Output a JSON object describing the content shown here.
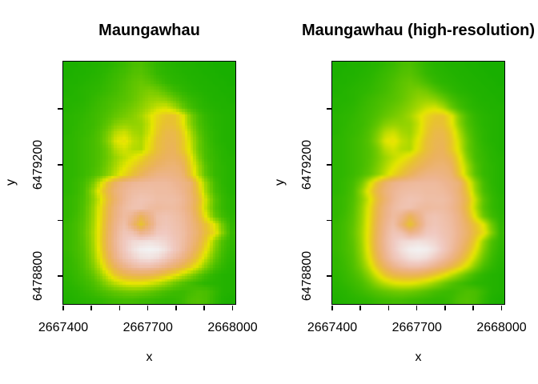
{
  "figure": {
    "background": "#FFFFFF",
    "text_color": "#000000",
    "border_color": "#000000"
  },
  "chart_data": [
    {
      "type": "heatmap",
      "title": "Maungawhau",
      "xlabel": "x",
      "ylabel": "y",
      "xlim": [
        2667400,
        2668010
      ],
      "ylim": [
        6478700,
        6479570
      ],
      "zlim": [
        94,
        195
      ],
      "grid": false,
      "x_ticks": [
        {
          "v": 2667400,
          "label": "2667400"
        },
        {
          "v": 2667500
        },
        {
          "v": 2667600
        },
        {
          "v": 2667700,
          "label": "2667700"
        },
        {
          "v": 2667800
        },
        {
          "v": 2667900
        },
        {
          "v": 2668000,
          "label": "2668000"
        }
      ],
      "y_ticks": [
        {
          "v": 6478800,
          "label": "6478800"
        },
        {
          "v": 6479000
        },
        {
          "v": 6479200,
          "label": "6479200"
        },
        {
          "v": 6479400
        }
      ],
      "palette_name": "terrain.colors",
      "palette": [
        "#00A600",
        "#2DB600",
        "#63C600",
        "#A0D600",
        "#E6E600",
        "#E8C32E",
        "#EBB25E",
        "#EDB48E",
        "#F0C9C0",
        "#F2F2F2"
      ],
      "interpolated": false,
      "elevation_grid": {
        "rows": 29,
        "cols": 21,
        "values": [
          [
            101,
            101,
            102,
            102,
            103,
            104,
            106,
            108,
            111,
            112,
            109,
            106,
            104,
            103,
            102,
            102,
            101,
            101,
            100,
            100,
            100
          ],
          [
            101,
            102,
            102,
            103,
            104,
            106,
            108,
            110,
            113,
            114,
            111,
            107,
            105,
            104,
            103,
            102,
            102,
            101,
            101,
            100,
            100
          ],
          [
            102,
            102,
            103,
            104,
            105,
            107,
            109,
            112,
            115,
            117,
            115,
            111,
            107,
            105,
            104,
            103,
            102,
            102,
            101,
            101,
            100
          ],
          [
            102,
            103,
            104,
            105,
            106,
            108,
            110,
            113,
            116,
            119,
            121,
            119,
            114,
            109,
            106,
            104,
            103,
            102,
            102,
            101,
            101
          ],
          [
            103,
            103,
            104,
            106,
            108,
            110,
            112,
            114,
            117,
            121,
            125,
            126,
            124,
            118,
            111,
            107,
            105,
            103,
            102,
            102,
            101
          ],
          [
            103,
            104,
            105,
            107,
            109,
            111,
            114,
            117,
            120,
            124,
            129,
            134,
            136,
            130,
            118,
            110,
            106,
            104,
            103,
            102,
            102
          ],
          [
            104,
            105,
            106,
            108,
            110,
            113,
            117,
            120,
            123,
            128,
            136,
            144,
            149,
            150,
            140,
            122,
            111,
            106,
            104,
            103,
            102
          ],
          [
            104,
            105,
            107,
            108,
            111,
            116,
            123,
            126,
            125,
            126,
            134,
            146,
            152,
            152,
            142,
            124,
            112,
            107,
            104,
            103,
            102
          ],
          [
            104,
            106,
            107,
            109,
            113,
            121,
            132,
            135,
            129,
            127,
            136,
            148,
            156,
            157,
            147,
            130,
            115,
            108,
            105,
            103,
            102
          ],
          [
            105,
            106,
            108,
            110,
            114,
            124,
            138,
            141,
            133,
            130,
            140,
            152,
            158,
            159,
            150,
            134,
            118,
            109,
            105,
            103,
            102
          ],
          [
            105,
            106,
            108,
            110,
            113,
            120,
            132,
            136,
            131,
            130,
            142,
            153,
            159,
            161,
            150,
            136,
            118,
            110,
            106,
            104,
            102
          ],
          [
            105,
            106,
            108,
            110,
            113,
            119,
            127,
            133,
            138,
            144,
            152,
            158,
            162,
            163,
            158,
            142,
            122,
            110,
            107,
            104,
            103
          ],
          [
            105,
            106,
            108,
            110,
            114,
            121,
            130,
            138,
            145,
            152,
            158,
            163,
            166,
            167,
            163,
            146,
            128,
            113,
            107,
            105,
            103
          ],
          [
            105,
            106,
            108,
            111,
            116,
            124,
            134,
            144,
            152,
            160,
            166,
            170,
            171,
            170,
            167,
            150,
            130,
            114,
            107,
            105,
            103
          ],
          [
            105,
            107,
            110,
            118,
            134,
            152,
            164,
            171,
            174,
            175,
            176,
            176,
            176,
            174,
            171,
            167,
            145,
            124,
            110,
            105,
            103
          ],
          [
            105,
            107,
            111,
            124,
            142,
            158,
            168,
            174,
            177,
            178,
            178,
            177,
            177,
            176,
            173,
            166,
            150,
            126,
            111,
            106,
            103
          ],
          [
            106,
            108,
            112,
            122,
            136,
            154,
            166,
            175,
            179,
            181,
            180,
            178,
            178,
            178,
            175,
            168,
            155,
            133,
            115,
            107,
            104
          ],
          [
            106,
            108,
            113,
            124,
            140,
            158,
            170,
            177,
            180,
            180,
            177,
            176,
            177,
            177,
            174,
            167,
            153,
            131,
            114,
            107,
            104
          ],
          [
            106,
            109,
            114,
            125,
            141,
            159,
            171,
            177,
            172,
            160,
            170,
            179,
            181,
            179,
            176,
            170,
            157,
            137,
            118,
            109,
            105
          ],
          [
            107,
            110,
            115,
            126,
            142,
            161,
            173,
            179,
            166,
            150,
            166,
            179,
            182,
            180,
            177,
            171,
            162,
            150,
            138,
            118,
            106
          ],
          [
            107,
            110,
            116,
            127,
            143,
            162,
            175,
            182,
            180,
            172,
            176,
            183,
            184,
            181,
            178,
            172,
            164,
            152,
            142,
            122,
            107
          ],
          [
            107,
            110,
            115,
            126,
            144,
            163,
            176,
            184,
            188,
            189,
            190,
            189,
            187,
            183,
            178,
            171,
            161,
            146,
            126,
            112,
            106
          ],
          [
            107,
            110,
            114,
            125,
            142,
            162,
            175,
            184,
            190,
            194,
            195,
            194,
            190,
            184,
            177,
            168,
            156,
            140,
            122,
            110,
            105
          ],
          [
            106,
            109,
            113,
            123,
            139,
            158,
            172,
            181,
            186,
            190,
            191,
            189,
            184,
            178,
            171,
            161,
            148,
            132,
            117,
            108,
            104
          ],
          [
            106,
            108,
            112,
            120,
            133,
            150,
            163,
            172,
            177,
            180,
            180,
            177,
            172,
            166,
            158,
            148,
            136,
            122,
            111,
            106,
            103
          ],
          [
            105,
            107,
            110,
            115,
            125,
            138,
            150,
            157,
            160,
            161,
            160,
            156,
            150,
            143,
            134,
            125,
            116,
            109,
            105,
            103,
            102
          ],
          [
            104,
            106,
            108,
            111,
            117,
            126,
            133,
            138,
            140,
            140,
            137,
            133,
            127,
            120,
            114,
            110,
            107,
            105,
            104,
            103,
            102
          ],
          [
            103,
            104,
            106,
            108,
            111,
            114,
            117,
            119,
            120,
            119,
            117,
            114,
            111,
            109,
            108,
            110,
            112,
            111,
            107,
            103,
            102
          ],
          [
            102,
            103,
            104,
            105,
            106,
            108,
            109,
            110,
            110,
            109,
            108,
            107,
            106,
            106,
            108,
            112,
            113,
            111,
            106,
            102,
            101
          ]
        ]
      }
    },
    {
      "type": "heatmap",
      "title": "Maungawhau (high-resolution)",
      "xlabel": "x",
      "ylabel": "y",
      "xlim": [
        2667400,
        2668010
      ],
      "ylim": [
        6478700,
        6479570
      ],
      "zlim": [
        94,
        195
      ],
      "grid": false,
      "x_ticks": [
        {
          "v": 2667400,
          "label": "2667400"
        },
        {
          "v": 2667500
        },
        {
          "v": 2667600
        },
        {
          "v": 2667700,
          "label": "2667700"
        },
        {
          "v": 2667800
        },
        {
          "v": 2667900
        },
        {
          "v": 2668000,
          "label": "2668000"
        }
      ],
      "y_ticks": [
        {
          "v": 6478800,
          "label": "6478800"
        },
        {
          "v": 6479000
        },
        {
          "v": 6479200,
          "label": "6479200"
        },
        {
          "v": 6479400
        }
      ],
      "palette_name": "terrain.colors",
      "palette": [
        "#00A600",
        "#2DB600",
        "#63C600",
        "#A0D600",
        "#E6E600",
        "#E8C32E",
        "#EBB25E",
        "#EDB48E",
        "#F0C9C0",
        "#F2F2F2"
      ],
      "interpolated": true,
      "elevation_ref": 0
    }
  ]
}
